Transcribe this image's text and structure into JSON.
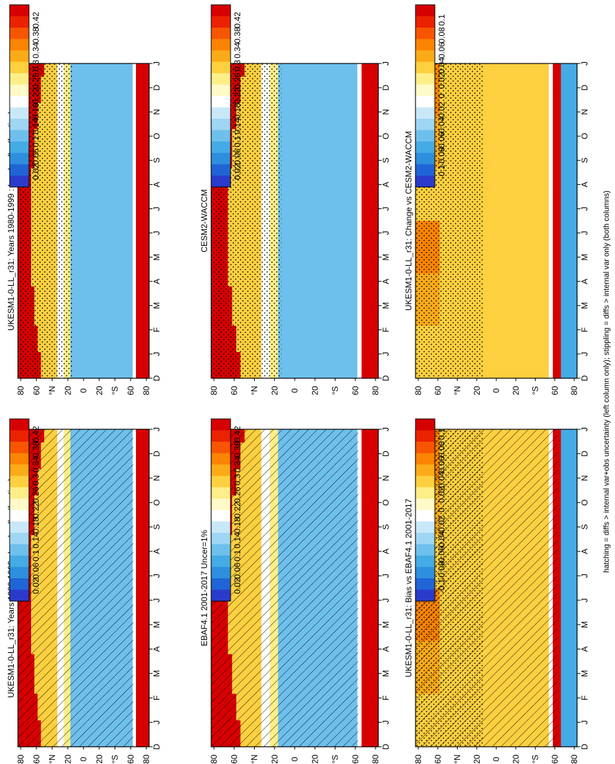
{
  "footnote": "hatching = diffs > internal var+obs uncertainty (left column only); stippling = diffs > internal var only (both columns)",
  "colorbars": {
    "abs": {
      "labels": [
        "0.42",
        "0.38",
        "0.34",
        "0.3",
        "0.26",
        "0.22",
        "0.18",
        "0.14",
        "0.1",
        "0.06",
        "0.02"
      ],
      "colors": [
        "#d70000",
        "#ea2200",
        "#f85500",
        "#fb8400",
        "#fcab18",
        "#fdd040",
        "#fdee88",
        "#fffac8",
        "#ffffff",
        "#c8e8f8",
        "#9fd6f3",
        "#6ec0ec",
        "#45abe5",
        "#2d8fde",
        "#2064d6",
        "#2a3bcb"
      ]
    },
    "diff": {
      "labels": [
        "0.1",
        "0.08",
        "0.06",
        "0.04",
        "0.02",
        "0",
        "-0.02",
        "-0.04",
        "-0.06",
        "-0.08",
        "-0.1"
      ],
      "colors": [
        "#d70000",
        "#ea2200",
        "#f85500",
        "#fb8400",
        "#fcab18",
        "#fdd040",
        "#fdee88",
        "#fffac8",
        "#ffffff",
        "#c8e8f8",
        "#9fd6f3",
        "#6ec0ec",
        "#45abe5",
        "#2d8fde",
        "#2064d6",
        "#2a3bcb"
      ]
    }
  },
  "chart_data": [
    {
      "type": "heatmap",
      "title": "UKESM1-0-LL_r31: Years 1980-1999 : Land : albs (fraction)",
      "x_ticks": [
        "D",
        "J",
        "F",
        "M",
        "A",
        "M",
        "J",
        "J",
        "A",
        "S",
        "O",
        "N",
        "D",
        "J"
      ],
      "y_ticks": [
        "80",
        "60",
        "°N",
        "20",
        "0",
        "20",
        "°S",
        "60",
        "80"
      ],
      "colorbar": "abs",
      "hatching": true,
      "stippling": false
    },
    {
      "type": "heatmap",
      "title": "UKESM1-0-LL_r31: Years 1980-1999 : Land : albs (fraction)",
      "x_ticks": [
        "D",
        "J",
        "F",
        "M",
        "A",
        "M",
        "J",
        "J",
        "A",
        "S",
        "O",
        "N",
        "D",
        "J"
      ],
      "y_ticks": [
        "80",
        "60",
        "°N",
        "20",
        "0",
        "20",
        "°S",
        "60",
        "80"
      ],
      "colorbar": "abs",
      "hatching": false,
      "stippling": true
    },
    {
      "type": "heatmap",
      "title": "EBAF4.1 2001-2017 Uncer=1%",
      "x_ticks": [
        "D",
        "J",
        "F",
        "M",
        "A",
        "M",
        "J",
        "J",
        "A",
        "S",
        "O",
        "N",
        "D",
        "J"
      ],
      "y_ticks": [
        "80",
        "60",
        "°N",
        "20",
        "0",
        "20",
        "°S",
        "60",
        "80"
      ],
      "colorbar": "abs",
      "hatching": true,
      "stippling": false
    },
    {
      "type": "heatmap",
      "title": "CESM2-WACCM",
      "x_ticks": [
        "D",
        "J",
        "F",
        "M",
        "A",
        "M",
        "J",
        "J",
        "A",
        "S",
        "O",
        "N",
        "D",
        "J"
      ],
      "y_ticks": [
        "80",
        "60",
        "°N",
        "20",
        "0",
        "20",
        "°S",
        "60",
        "80"
      ],
      "colorbar": "abs",
      "hatching": false,
      "stippling": true
    },
    {
      "type": "heatmap",
      "title": "UKESM1-0-LL_r31: Bias vs EBAF4.1 2001-2017",
      "x_ticks": [
        "D",
        "J",
        "F",
        "M",
        "A",
        "M",
        "J",
        "J",
        "A",
        "S",
        "O",
        "N",
        "D",
        "J"
      ],
      "y_ticks": [
        "80",
        "60",
        "°N",
        "20",
        "0",
        "20",
        "°S",
        "60",
        "80"
      ],
      "colorbar": "diff",
      "hatching": true,
      "stippling": true
    },
    {
      "type": "heatmap",
      "title": "UKESM1-0-LL_r31: Change vs CESM2-WACCM",
      "x_ticks": [
        "D",
        "J",
        "F",
        "M",
        "A",
        "M",
        "J",
        "J",
        "A",
        "S",
        "O",
        "N",
        "D",
        "J"
      ],
      "y_ticks": [
        "80",
        "60",
        "°N",
        "20",
        "0",
        "20",
        "°S",
        "60",
        "80"
      ],
      "colorbar": "diff",
      "hatching": false,
      "stippling": true
    }
  ]
}
